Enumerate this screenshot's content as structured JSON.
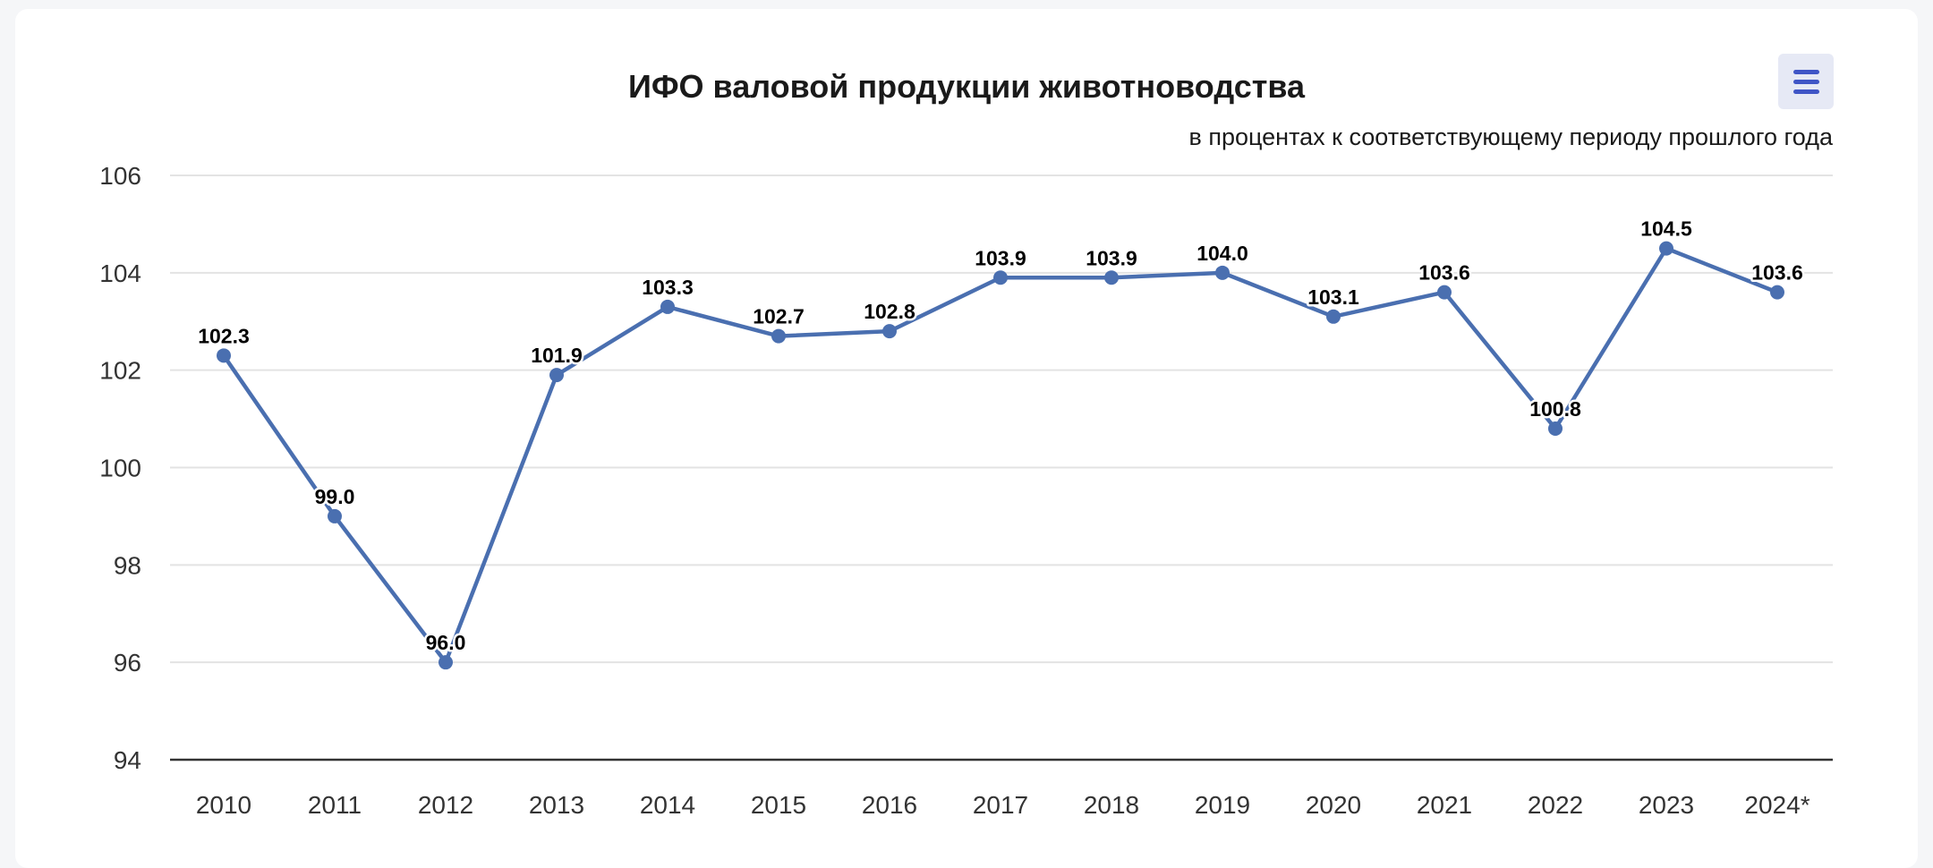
{
  "chart_data": {
    "type": "line",
    "title": "ИФО валовой продукции животноводства",
    "subtitle": "в процентах к соответствующему периоду прошлого года",
    "categories": [
      "2010",
      "2011",
      "2012",
      "2013",
      "2014",
      "2015",
      "2016",
      "2017",
      "2018",
      "2019",
      "2020",
      "2021",
      "2022",
      "2023",
      "2024*"
    ],
    "series": [
      {
        "values": [
          102.3,
          99.0,
          96.0,
          101.9,
          103.3,
          102.7,
          102.8,
          103.9,
          103.9,
          104.0,
          103.1,
          103.6,
          100.8,
          104.5,
          103.6
        ],
        "labels": [
          "102.3",
          "99.0",
          "96.0",
          "101.9",
          "103.3",
          "102.7",
          "102.8",
          "103.9",
          "103.9",
          "104.0",
          "103.1",
          "103.6",
          "100.8",
          "104.5",
          "103.6"
        ]
      }
    ],
    "ylim": [
      94,
      106
    ],
    "yticks": [
      94,
      96,
      98,
      100,
      102,
      104,
      106
    ],
    "xlabel": "",
    "ylabel": "",
    "grid": true,
    "legend": "none",
    "line_color": "#4a6fb0",
    "grid_color": "#e3e3e3",
    "axis_color": "#333333"
  },
  "toolbar": {
    "menu_icon": "hamburger-menu-icon",
    "accent_color": "#3f55c6"
  }
}
